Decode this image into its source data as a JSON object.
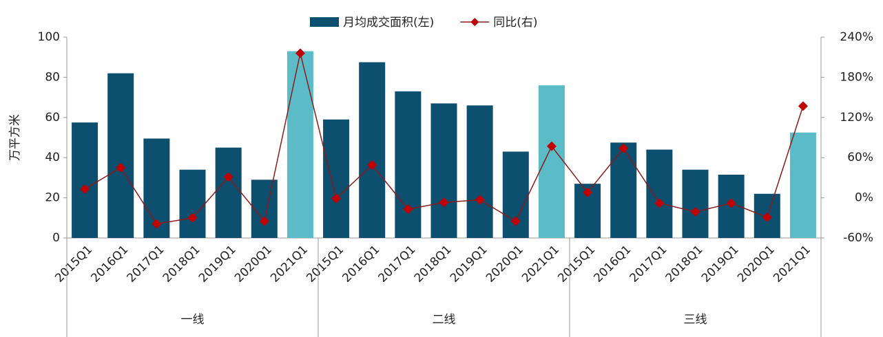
{
  "chart_data": {
    "type": "bar",
    "y_label": "万平方米",
    "groups": [
      {
        "name": "一线",
        "categories": [
          "2015Q1",
          "2016Q1",
          "2017Q1",
          "2018Q1",
          "2019Q1",
          "2020Q1",
          "2021Q1"
        ]
      },
      {
        "name": "二线",
        "categories": [
          "2015Q1",
          "2016Q1",
          "2017Q1",
          "2018Q1",
          "2019Q1",
          "2020Q1",
          "2021Q1"
        ]
      },
      {
        "name": "三线",
        "categories": [
          "2015Q1",
          "2016Q1",
          "2017Q1",
          "2018Q1",
          "2019Q1",
          "2020Q1",
          "2021Q1"
        ]
      }
    ],
    "series": [
      {
        "name": "月均成交面积(左)",
        "type": "bar",
        "color": "#0d4f6e",
        "colors": [
          "#0d4f6e",
          "#0d4f6e",
          "#0d4f6e",
          "#0d4f6e",
          "#0d4f6e",
          "#0d4f6e",
          "#5bbcc8",
          "#0d4f6e",
          "#0d4f6e",
          "#0d4f6e",
          "#0d4f6e",
          "#0d4f6e",
          "#0d4f6e",
          "#5bbcc8",
          "#0d4f6e",
          "#0d4f6e",
          "#0d4f6e",
          "#0d4f6e",
          "#0d4f6e",
          "#0d4f6e",
          "#5bbcc8"
        ],
        "values": [
          57.5,
          82,
          49.5,
          34,
          45,
          29,
          93,
          59,
          87.5,
          73,
          67,
          66,
          43,
          76,
          27,
          47.5,
          44,
          34,
          31.5,
          22,
          52.5
        ]
      },
      {
        "name": "同比(右)",
        "type": "line",
        "axis": "y2",
        "color": "#8b1a1a",
        "marker_color": "#c00000",
        "values": [
          13,
          45,
          -39,
          -30,
          31,
          -35,
          216,
          -1,
          49,
          -17,
          -7,
          -3,
          -35,
          77,
          8,
          74,
          -8,
          -21,
          -8,
          -29,
          137
        ]
      }
    ],
    "ylim": [
      0,
      100
    ],
    "yticks": [
      0,
      20,
      40,
      60,
      80,
      100
    ],
    "y2lim": [
      -60,
      240
    ],
    "y2ticks": [
      {
        "value": -60,
        "label": "-60%"
      },
      {
        "value": 0,
        "label": "0%"
      },
      {
        "value": 60,
        "label": "60%"
      },
      {
        "value": 120,
        "label": "120%"
      },
      {
        "value": 180,
        "label": "180%"
      },
      {
        "value": 240,
        "label": "240%"
      }
    ],
    "legend": "top"
  }
}
